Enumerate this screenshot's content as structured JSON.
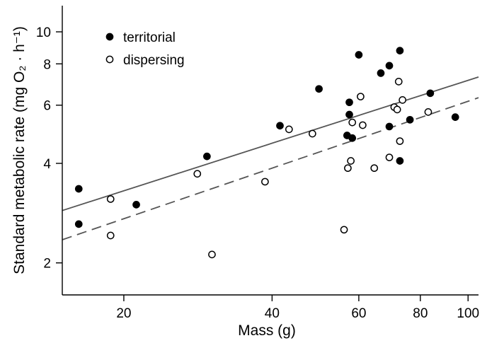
{
  "chart_data": {
    "type": "scatter",
    "xscale": "log",
    "yscale": "log",
    "xlim": [
      15,
      105
    ],
    "ylim": [
      1.6,
      12
    ],
    "xticks": [
      20,
      40,
      60,
      80,
      100
    ],
    "yticks": [
      2,
      4,
      6,
      8,
      10
    ],
    "xlabel": "Mass (g)",
    "ylabel": "Standard metabolic rate (mg O₂ · h⁻¹)",
    "grid": false,
    "legend_position": "top-left",
    "series": [
      {
        "name": "territorial",
        "marker": "filled-circle",
        "fit_line": "solid",
        "fit_line_ends": [
          [
            15,
            2.88
          ],
          [
            105,
            7.3
          ]
        ],
        "points": [
          [
            16.2,
            3.35
          ],
          [
            16.2,
            2.62
          ],
          [
            21.2,
            3.0
          ],
          [
            29.5,
            4.2
          ],
          [
            41.5,
            5.2
          ],
          [
            49.8,
            6.72
          ],
          [
            56.8,
            4.86
          ],
          [
            57.4,
            6.12
          ],
          [
            57.4,
            5.62
          ],
          [
            58.2,
            4.77
          ],
          [
            60.0,
            8.52
          ],
          [
            66.5,
            7.5
          ],
          [
            69.2,
            5.17
          ],
          [
            69.2,
            7.9
          ],
          [
            72.7,
            8.77
          ],
          [
            72.7,
            4.07
          ],
          [
            76.2,
            5.42
          ],
          [
            83.8,
            6.52
          ],
          [
            94.2,
            5.52
          ]
        ]
      },
      {
        "name": "dispersing",
        "marker": "open-circle",
        "fit_line": "dashed",
        "fit_line_ends": [
          [
            15,
            2.35
          ],
          [
            105,
            6.32
          ]
        ],
        "points": [
          [
            18.8,
            3.12
          ],
          [
            18.8,
            2.42
          ],
          [
            28.2,
            3.72
          ],
          [
            30.2,
            2.12
          ],
          [
            38.7,
            3.52
          ],
          [
            43.3,
            5.07
          ],
          [
            48.3,
            4.92
          ],
          [
            56.0,
            2.52
          ],
          [
            57.0,
            3.87
          ],
          [
            57.8,
            4.07
          ],
          [
            58.2,
            5.32
          ],
          [
            60.5,
            6.37
          ],
          [
            61.1,
            5.22
          ],
          [
            64.5,
            3.87
          ],
          [
            69.2,
            4.17
          ],
          [
            70.8,
            5.92
          ],
          [
            71.8,
            5.82
          ],
          [
            72.3,
            7.07
          ],
          [
            72.7,
            4.67
          ],
          [
            73.6,
            6.22
          ],
          [
            83.0,
            5.72
          ]
        ]
      }
    ]
  }
}
